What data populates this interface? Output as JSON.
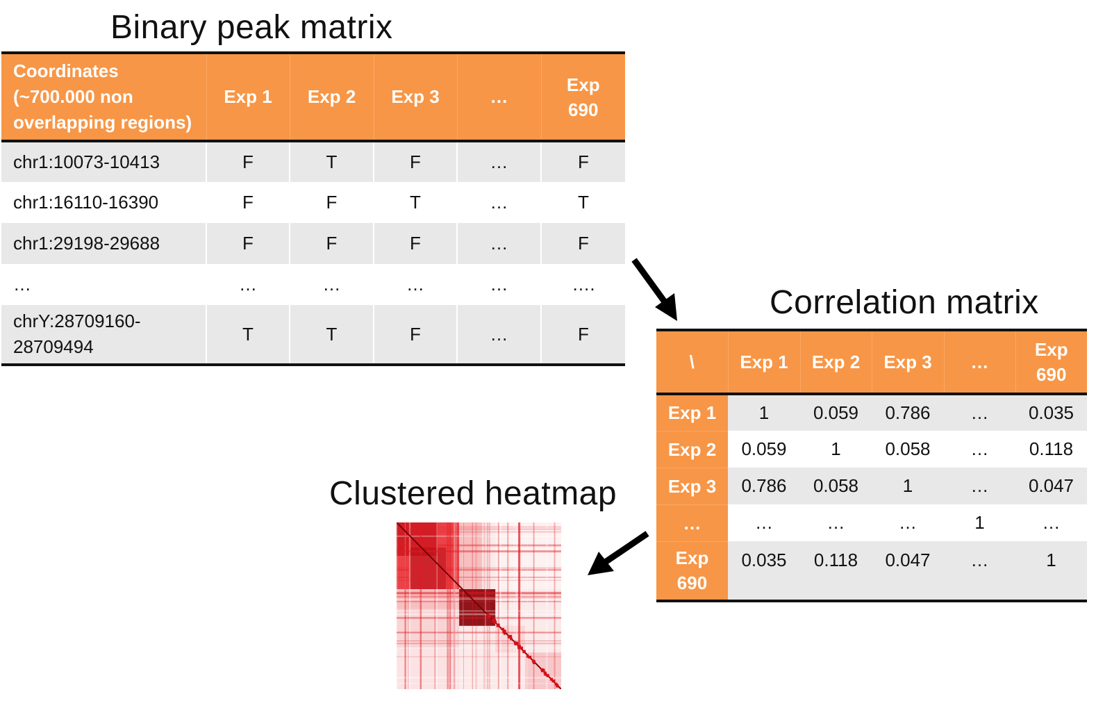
{
  "titles": {
    "binary": "Binary peak matrix",
    "correlation": "Correlation matrix",
    "heatmap": "Clustered heatmap"
  },
  "binary_matrix": {
    "header": {
      "coordinates": "Coordinates (~700.000 non overlapping regions)",
      "coordinates_lines": [
        "Coordinates",
        "(~700.000 non",
        "overlapping regions)"
      ],
      "exp1": "Exp 1",
      "exp2": "Exp 2",
      "exp3": "Exp 3",
      "ellipsis": "…",
      "exp690_lines": [
        "Exp",
        "690"
      ]
    },
    "rows": [
      {
        "coord": "chr1:10073-10413",
        "exp1": "F",
        "exp2": "T",
        "exp3": "F",
        "ellipsis": "…",
        "exp690": "F"
      },
      {
        "coord": "chr1:16110-16390",
        "exp1": "F",
        "exp2": "F",
        "exp3": "T",
        "ellipsis": "…",
        "exp690": "T"
      },
      {
        "coord": "chr1:29198-29688",
        "exp1": "F",
        "exp2": "F",
        "exp3": "F",
        "ellipsis": "…",
        "exp690": "F"
      },
      {
        "coord": "…",
        "exp1": "…",
        "exp2": "…",
        "exp3": "…",
        "ellipsis": "…",
        "exp690": "…."
      },
      {
        "coord_lines": [
          "chrY:28709160-",
          "28709494"
        ],
        "exp1": "T",
        "exp2": "T",
        "exp3": "F",
        "ellipsis": "…",
        "exp690": "F"
      }
    ]
  },
  "correlation_matrix": {
    "header": {
      "corner": "\\",
      "exp1": "Exp 1",
      "exp2": "Exp 2",
      "exp3": "Exp 3",
      "ellipsis": "…",
      "exp690_lines": [
        "Exp",
        "690"
      ]
    },
    "rows": [
      {
        "label": "Exp 1",
        "values": [
          "1",
          "0.059",
          "0.786",
          "…",
          "0.035"
        ]
      },
      {
        "label": "Exp 2",
        "values": [
          "0.059",
          "1",
          "0.058",
          "…",
          "0.118"
        ]
      },
      {
        "label": "Exp 3",
        "values": [
          "0.786",
          "0.058",
          "1",
          "…",
          "0.047"
        ]
      },
      {
        "label": "…",
        "values": [
          "…",
          "…",
          "…",
          "1",
          "…"
        ]
      },
      {
        "label_lines": [
          "Exp",
          "690"
        ],
        "values": [
          "0.035",
          "0.118",
          "0.047",
          "…",
          "1"
        ]
      }
    ]
  },
  "colors": {
    "header_orange": "#f79646",
    "row_gray": "#e8e8e8",
    "heat_low": "#ffffff",
    "heat_high": "#e8111a",
    "heat_max": "#6b0000"
  }
}
